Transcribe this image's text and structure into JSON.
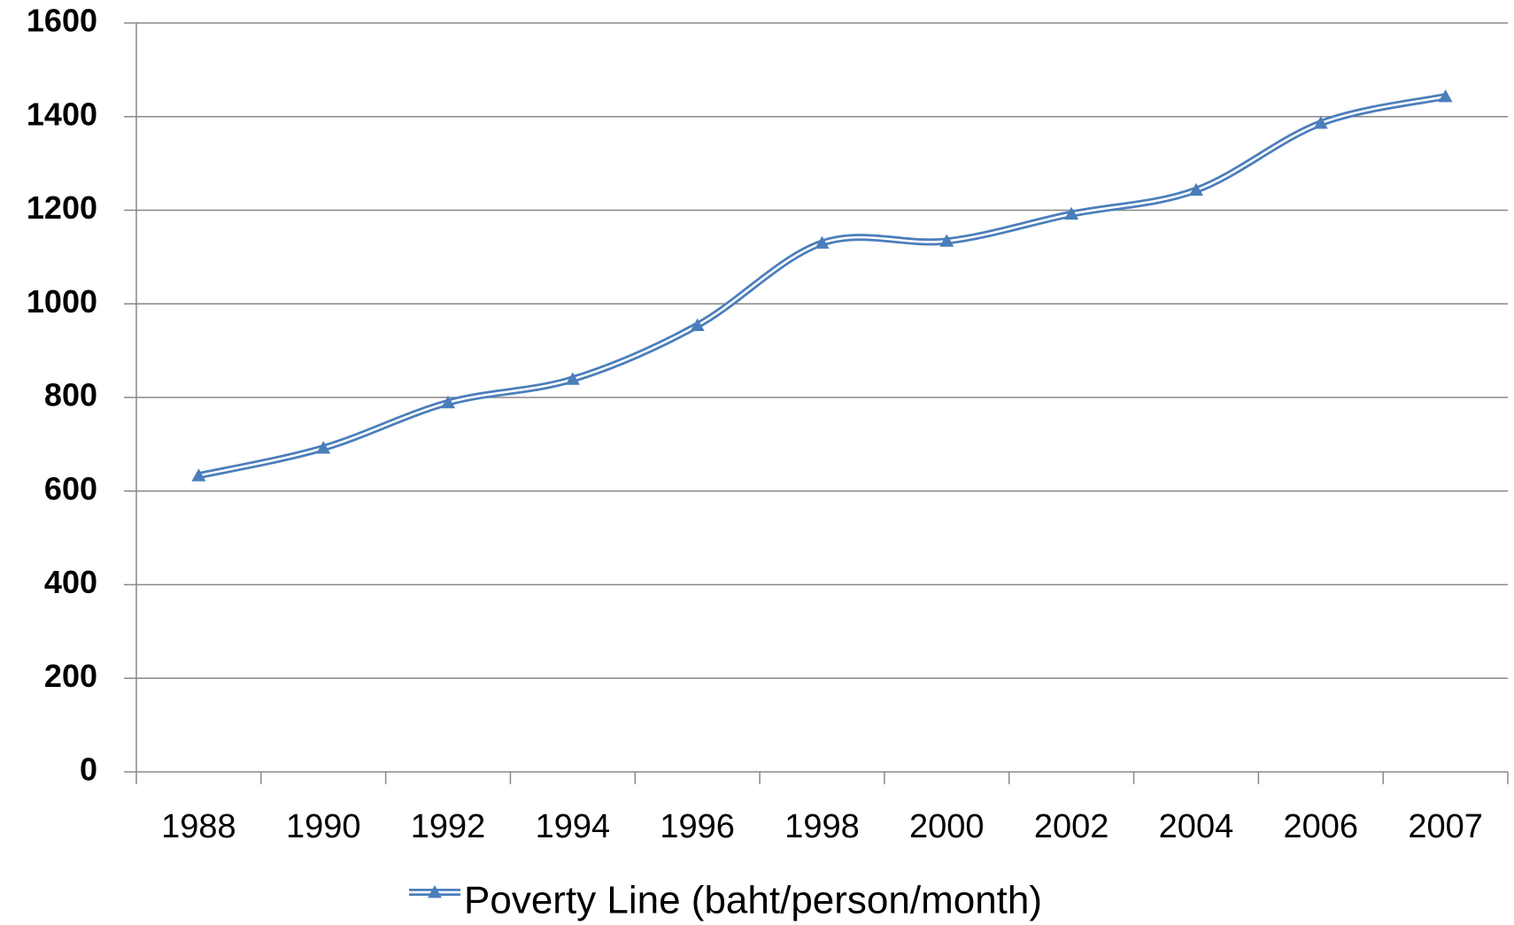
{
  "chart_data": {
    "type": "line",
    "categories": [
      "1988",
      "1990",
      "1992",
      "1994",
      "1996",
      "1998",
      "2000",
      "2002",
      "2004",
      "2006",
      "2007"
    ],
    "series": [
      {
        "name": "Poverty Line (baht/person/month)",
        "color": "#4a7ebb",
        "values": [
          633,
          692,
          789,
          839,
          954,
          1130,
          1134,
          1192,
          1243,
          1386,
          1443
        ]
      }
    ],
    "ylim": [
      0,
      1600
    ],
    "yticks": [
      0,
      200,
      400,
      600,
      800,
      1000,
      1200,
      1400,
      1600
    ],
    "grid": true,
    "smooth": true,
    "legend": "bottom"
  }
}
